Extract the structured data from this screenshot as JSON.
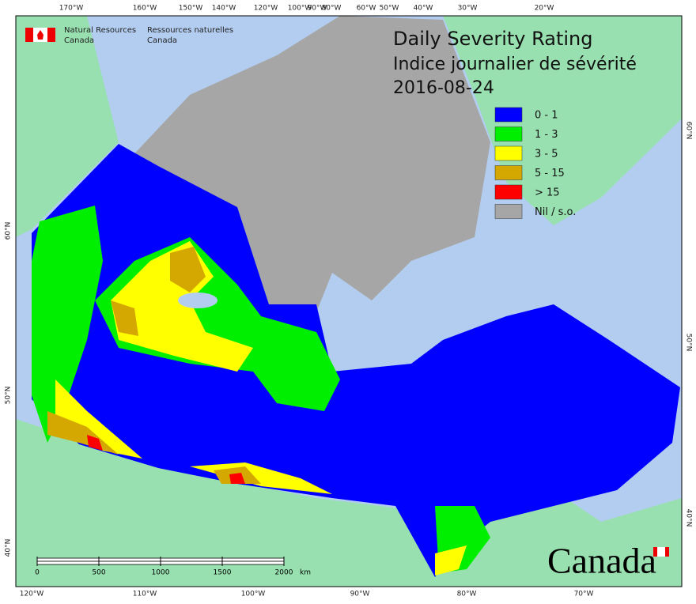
{
  "header": {
    "agency_en": [
      "Natural Resources",
      "Canada"
    ],
    "agency_fr": [
      "Ressources naturelles",
      "Canada"
    ]
  },
  "title": {
    "line1": "Daily Severity Rating",
    "line2": "Indice journalier de sévérité",
    "date": "2016-08-24"
  },
  "legend": [
    {
      "label": "0 - 1",
      "color": "#0000ff"
    },
    {
      "label": "1 - 3",
      "color": "#00ee00"
    },
    {
      "label": "3 - 5",
      "color": "#ffff00"
    },
    {
      "label": "5 - 15",
      "color": "#d4a800"
    },
    {
      "label": "> 15",
      "color": "#ff0000"
    },
    {
      "label": "Nil / s.o.",
      "color": "#a6a6a6"
    }
  ],
  "graticule": {
    "top": [
      "170°W",
      "160°W",
      "150°W",
      "140°W",
      "120°W",
      "100°W",
      "90°W",
      "80°W",
      "60°W",
      "50°W",
      "40°W",
      "30°W",
      "20°W"
    ],
    "bottom": [
      "120°W",
      "110°W",
      "100°W",
      "90°W",
      "80°W",
      "70°W"
    ],
    "left": [
      "60°N",
      "50°N",
      "40°N"
    ],
    "right": [
      "60°N",
      "50°N",
      "40°N"
    ]
  },
  "scale_bar": {
    "ticks": [
      0,
      500,
      1000,
      1500,
      2000
    ],
    "unit": "km"
  },
  "wordmark": "Canada"
}
